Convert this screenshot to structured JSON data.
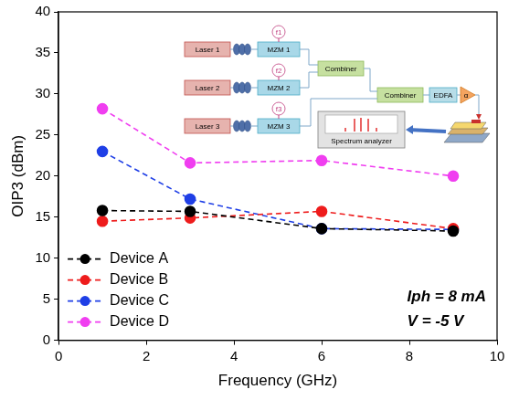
{
  "chart_data": {
    "type": "line",
    "x_label": "Frequency (GHz)",
    "y_label": "OIP3 (dBm)",
    "x": [
      1,
      3,
      6,
      9
    ],
    "xlim": [
      0,
      10
    ],
    "xticks": [
      0,
      2,
      4,
      6,
      8,
      10
    ],
    "ylim": [
      0,
      40
    ],
    "yticks": [
      0,
      5,
      10,
      15,
      20,
      25,
      30,
      35,
      40
    ],
    "grid": false,
    "legend": "lower left",
    "marker": "circle",
    "line_style": "dashed",
    "annotations": [
      "Iph = 8 mA",
      "V = -5 V"
    ],
    "series": [
      {
        "name": "Device A",
        "color": "#000000",
        "values": [
          15.8,
          15.7,
          13.6,
          13.3
        ]
      },
      {
        "name": "Device B",
        "color": "#ee1c1c",
        "values": [
          14.5,
          14.9,
          15.7,
          13.6
        ]
      },
      {
        "name": "Device C",
        "color": "#1f3fe6",
        "values": [
          23.0,
          17.2,
          13.6,
          13.5
        ]
      },
      {
        "name": "Device D",
        "color": "#f03ef0",
        "values": [
          28.2,
          21.6,
          21.9,
          20.0
        ]
      }
    ],
    "inset": {
      "lasers": [
        "Laser 1",
        "Laser 2",
        "Laser 3"
      ],
      "modulators": [
        "MZM 1",
        "MZM 2",
        "MZM 3"
      ],
      "tones": [
        "f1",
        "f2",
        "f3"
      ],
      "combiners": [
        "Combiner",
        "Combiner"
      ],
      "amplifier": "EDFA",
      "attenuator": "α",
      "analyzer": "Spectrum analyzer"
    }
  }
}
